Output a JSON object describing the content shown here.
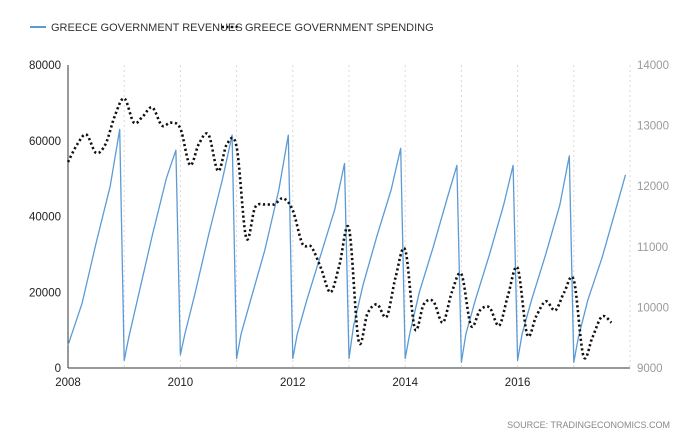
{
  "chart_data": {
    "type": "line",
    "source": "SOURCE: TRADINGECONOMICS.COM",
    "colors": {
      "revenues": "#5b9bd5",
      "spending": "#111111",
      "grid": "#d9d9d9",
      "axis": "#333333"
    },
    "x_ticks": [
      "2008",
      "2010",
      "2012",
      "2014",
      "2016"
    ],
    "xlim": [
      2008,
      2018
    ],
    "y_left": {
      "ticks": [
        "0",
        "20000",
        "40000",
        "60000",
        "80000"
      ],
      "lim": [
        0,
        80000
      ]
    },
    "y_right": {
      "ticks": [
        "9000",
        "10000",
        "11000",
        "12000",
        "13000",
        "14000"
      ],
      "lim": [
        9000,
        14000
      ]
    },
    "legend_position": "top-left",
    "series": [
      {
        "name": "GREECE GOVERNMENT REVENUES",
        "axis": "left",
        "style": "solid",
        "x": [
          2008.0,
          2008.25,
          2008.5,
          2008.75,
          2008.92,
          2009.0,
          2009.08,
          2009.25,
          2009.5,
          2009.75,
          2009.92,
          2010.0,
          2010.08,
          2010.25,
          2010.5,
          2010.75,
          2010.92,
          2011.0,
          2011.08,
          2011.25,
          2011.5,
          2011.75,
          2011.92,
          2012.0,
          2012.08,
          2012.25,
          2012.5,
          2012.75,
          2012.92,
          2013.0,
          2013.08,
          2013.25,
          2013.5,
          2013.75,
          2013.92,
          2014.0,
          2014.08,
          2014.25,
          2014.5,
          2014.75,
          2014.92,
          2015.0,
          2015.08,
          2015.25,
          2015.5,
          2015.75,
          2015.92,
          2016.0,
          2016.08,
          2016.25,
          2016.5,
          2016.75,
          2016.92,
          2017.0,
          2017.08,
          2017.25,
          2017.5,
          2017.75,
          2017.92
        ],
        "values": [
          6000,
          17000,
          33000,
          48000,
          63000,
          2000,
          8000,
          19000,
          35000,
          50000,
          57500,
          3500,
          9000,
          19000,
          35000,
          50000,
          61500,
          2500,
          9000,
          18000,
          31000,
          47000,
          61500,
          2500,
          9000,
          18000,
          30000,
          42000,
          54000,
          2500,
          11000,
          22000,
          35000,
          47000,
          58000,
          2500,
          9000,
          20000,
          32000,
          45000,
          53500,
          1500,
          9000,
          18000,
          30000,
          43000,
          53500,
          2000,
          9000,
          18000,
          30000,
          43000,
          56000,
          1500,
          8000,
          18000,
          29000,
          42000,
          51000
        ]
      },
      {
        "name": "GREECE GOVERNMENT SPENDING",
        "axis": "right",
        "style": "dotted",
        "x": [
          2008.0,
          2008.17,
          2008.33,
          2008.5,
          2008.67,
          2008.83,
          2009.0,
          2009.17,
          2009.33,
          2009.5,
          2009.67,
          2009.83,
          2010.0,
          2010.17,
          2010.33,
          2010.5,
          2010.67,
          2010.83,
          2011.0,
          2011.17,
          2011.33,
          2011.5,
          2011.67,
          2011.83,
          2012.0,
          2012.17,
          2012.33,
          2012.5,
          2012.67,
          2012.83,
          2013.0,
          2013.17,
          2013.33,
          2013.5,
          2013.67,
          2013.83,
          2014.0,
          2014.17,
          2014.33,
          2014.5,
          2014.67,
          2014.83,
          2015.0,
          2015.17,
          2015.33,
          2015.5,
          2015.67,
          2015.83,
          2016.0,
          2016.17,
          2016.33,
          2016.5,
          2016.67,
          2016.83,
          2017.0,
          2017.17,
          2017.33,
          2017.5,
          2017.67
        ],
        "values": [
          12400,
          12700,
          12850,
          12550,
          12700,
          13150,
          13450,
          13050,
          13150,
          13300,
          13000,
          13050,
          12950,
          12350,
          12700,
          12850,
          12250,
          12700,
          12650,
          11150,
          11650,
          11700,
          11700,
          11800,
          11600,
          11050,
          11000,
          10650,
          10250,
          10700,
          11300,
          9450,
          9900,
          10050,
          9850,
          10500,
          10950,
          9650,
          10050,
          10100,
          9750,
          10250,
          10550,
          9700,
          9950,
          10000,
          9700,
          10200,
          10650,
          9550,
          9850,
          10100,
          9950,
          10250,
          10450,
          9200,
          9500,
          9850,
          9750
        ]
      }
    ]
  }
}
